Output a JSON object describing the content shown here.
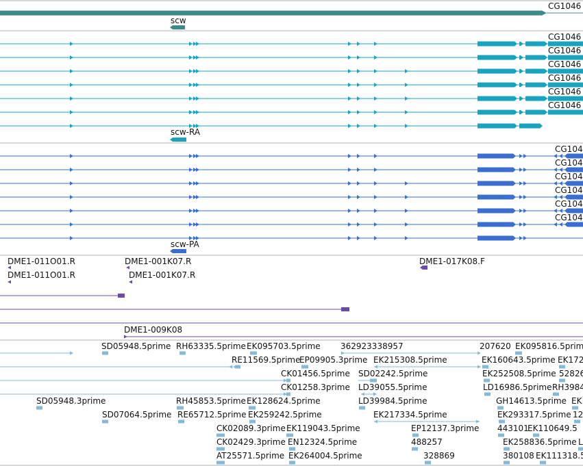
{
  "colors": {
    "gene": "#3d8a8a",
    "transcript": "#1aa3be",
    "protein": "#3a6fcf",
    "clone": "#6a4ba6",
    "est": "#86b8d8",
    "divider": "#b0b0b0"
  },
  "tracks": {
    "gene": {
      "labels": [
        "CG1046",
        "scw"
      ]
    },
    "transcripts": {
      "labels": [
        "CG1046",
        "CG1046",
        "CG1046",
        "CG1046",
        "CG1046",
        "CG1046",
        "scw-RA"
      ]
    },
    "proteins": {
      "labels": [
        "CG104",
        "CG104",
        "CG104",
        "CG104",
        "CG104",
        "CG104",
        "scw-PA"
      ]
    },
    "clones": {
      "labels": [
        "DME1-011O01.R",
        "DME1-001K07.R",
        "DME1-017K08.F",
        "DME1-011O01.R",
        "DME1-001K07.R",
        "DME1-009K08"
      ]
    },
    "ests": {
      "labels": [
        "SD05948.5prime",
        "RH63335.5prime",
        "EK095703.5prime",
        "362923338957",
        "207620",
        "EK095816.5prime",
        "RE11569.5prime",
        "EP09905.3prime",
        "EK215308.5prime",
        "EK160643.5prime",
        "EK172",
        "CK01456.5prime",
        "SD02242.5prime",
        "EK252508.5prime",
        "52826",
        "CK01258.3prime",
        "LD39055.5prime",
        "LD16986.5prime",
        "RH3984",
        "SD05948.3prime",
        "RH45853.5prime",
        "EK128624.5prime",
        "LD39984.5prime",
        "GH14613.5prime",
        "EK",
        "SD07064.5prime",
        "RE65712.5prime",
        "EK259242.5prime",
        "EK217334.5prime",
        "EK293317.5prime",
        "12",
        "CK02089.3prime",
        "EK119043.5prime",
        "EP12137.3prime",
        "443101",
        "EK110649.5",
        "CK02429.3prime",
        "EN12324.5prime",
        "488257",
        "EK258836.5prime",
        "LI",
        "AT25571.5prime",
        "EK264004.5prime",
        "328869",
        "380108",
        "EK111318.5"
      ]
    }
  }
}
